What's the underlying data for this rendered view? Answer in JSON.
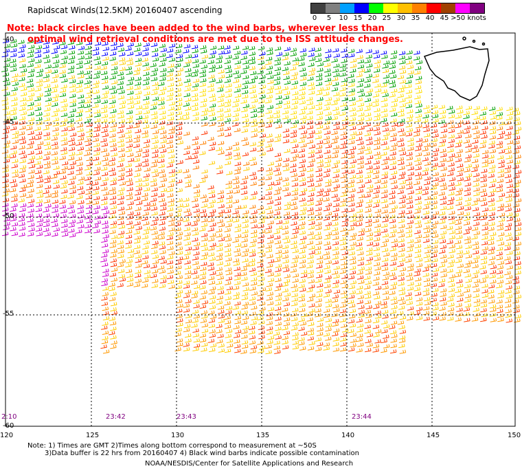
{
  "title": "Rapidscat Winds(12.5KM) 20160407 ascending",
  "note_red": [
    "Note: black circles have been added to the wind barbs, wherever less than",
    "optimal wind retrieval conditions are met due to the ISS attitude changes."
  ],
  "legend": {
    "labels": [
      "0",
      "5",
      "10",
      "15",
      "20",
      "25",
      "30",
      "35",
      "40",
      "45",
      ">50 knots"
    ],
    "colors": [
      "#404040",
      "#808080",
      "#00a0ff",
      "#0000ff",
      "#00ff00",
      "#ffff00",
      "#ffc000",
      "#ff8000",
      "#ff0000",
      "#a04000",
      "#ff00ff",
      "#800080"
    ]
  },
  "lat_labels": [
    "-40",
    "-45",
    "-50",
    "-55",
    "-60"
  ],
  "lon_labels": [
    "120",
    "125",
    "130",
    "135",
    "140",
    "145",
    "150"
  ],
  "time_labels": [
    "2:10",
    "23:42",
    "23:43",
    "23:44"
  ],
  "footer": [
    "Note: 1) Times are GMT 2)Times along bottom correspond to measurement at ~50S",
    "3)Data buffer is 22 hrs from 20160407 4) Black wind barbs indicate possible contamination",
    "NOAA/NESDIS/Center for Satellite Applications and Research"
  ]
}
